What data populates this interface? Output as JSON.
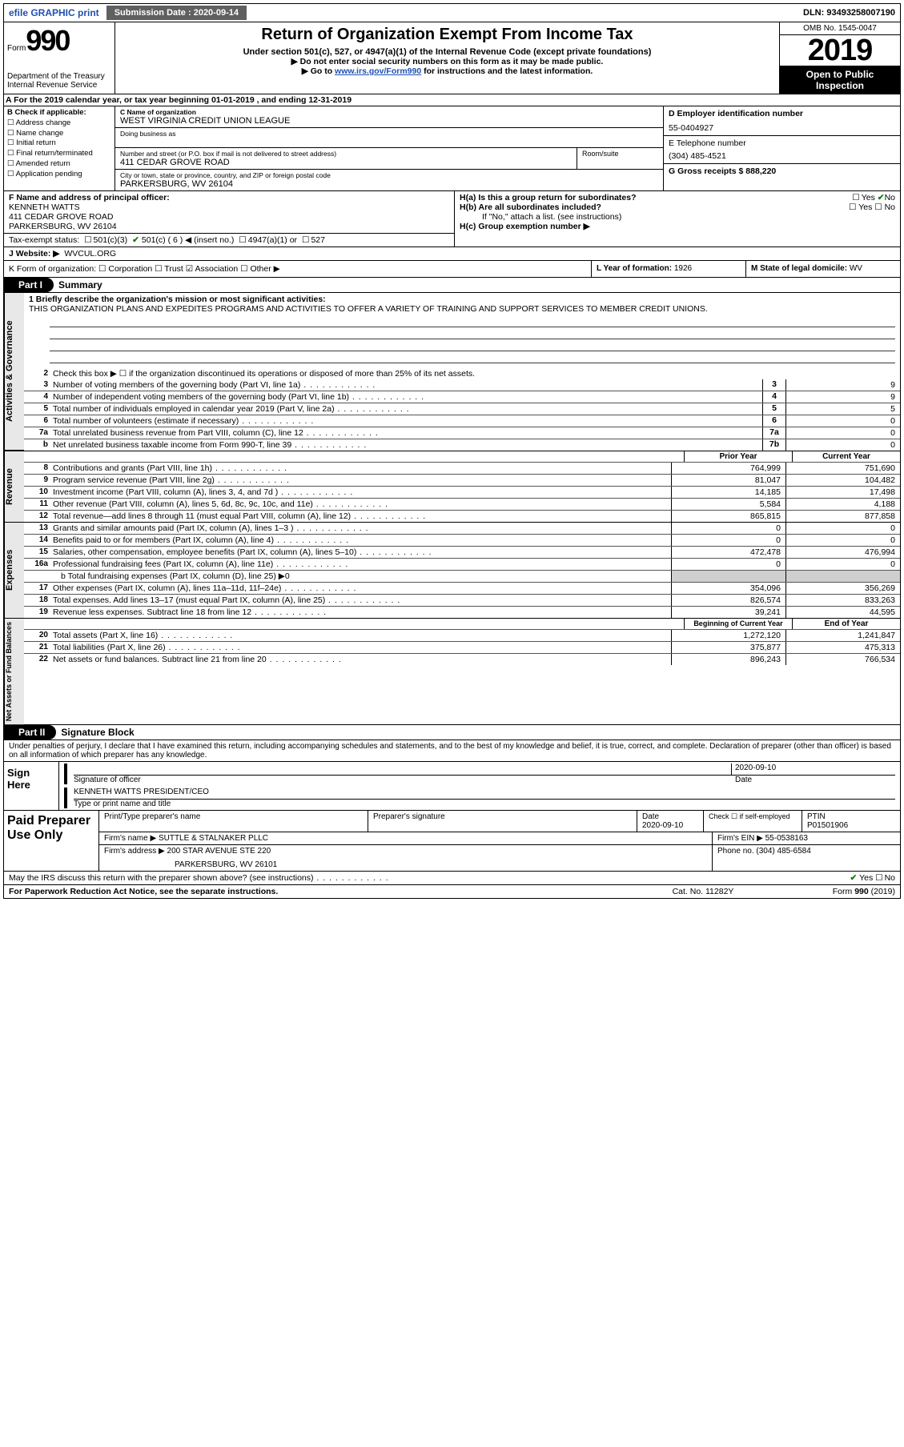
{
  "topbar": {
    "efile": "efile GRAPHIC print",
    "submission_label": "Submission Date : 2020-09-14",
    "dln": "DLN: 93493258007190"
  },
  "header": {
    "form_word": "Form",
    "form_number": "990",
    "dept1": "Department of the Treasury",
    "dept2": "Internal Revenue Service",
    "title": "Return of Organization Exempt From Income Tax",
    "sub1": "Under section 501(c), 527, or 4947(a)(1) of the Internal Revenue Code (except private foundations)",
    "sub2": "▶ Do not enter social security numbers on this form as it may be made public.",
    "sub3a": "▶ Go to ",
    "sub3link": "www.irs.gov/Form990",
    "sub3b": " for instructions and the latest information.",
    "omb": "OMB No. 1545-0047",
    "year": "2019",
    "open1": "Open to Public",
    "open2": "Inspection"
  },
  "rowA": "A For the 2019 calendar year, or tax year beginning 01-01-2019    , and ending 12-31-2019",
  "boxB": {
    "label": "B Check if applicable:",
    "items": [
      "Address change",
      "Name change",
      "Initial return",
      "Final return/terminated",
      "Amended return",
      "Application pending"
    ]
  },
  "boxC": {
    "name_lbl": "C Name of organization",
    "name_val": "WEST VIRGINIA CREDIT UNION LEAGUE",
    "dba_lbl": "Doing business as",
    "addr_lbl": "Number and street (or P.O. box if mail is not delivered to street address)",
    "addr_val": "411 CEDAR GROVE ROAD",
    "room_lbl": "Room/suite",
    "city_lbl": "City or town, state or province, country, and ZIP or foreign postal code",
    "city_val": "PARKERSBURG, WV  26104"
  },
  "boxD": {
    "lbl": "D Employer identification number",
    "val": "55-0404927"
  },
  "boxE": {
    "lbl": "E Telephone number",
    "val": "(304) 485-4521"
  },
  "boxG": {
    "lbl": "G Gross receipts $ 888,220"
  },
  "boxF": {
    "lbl": "F  Name and address of principal officer:",
    "l1": "KENNETH WATTS",
    "l2": "411 CEDAR GROVE ROAD",
    "l3": "PARKERSBURG, WV  26104"
  },
  "boxH": {
    "ha": "H(a)  Is this a group return for subordinates?",
    "ha_yes": "Yes",
    "ha_no": "No",
    "hb": "H(b)  Are all subordinates included?",
    "hb_yesno": "Yes    ☐ No",
    "hnote": "If \"No,\" attach a list. (see instructions)",
    "hc": "H(c)  Group exemption number ▶"
  },
  "taxstatus": {
    "lbl": "Tax-exempt status:",
    "opt1": "501(c)(3)",
    "opt2": "501(c) ( 6 ) ◀ (insert no.)",
    "opt3": "4947(a)(1) or",
    "opt4": "527"
  },
  "rowJ": {
    "lbl": "J   Website: ▶",
    "val": "WVCUL.ORG"
  },
  "rowK": {
    "left": "K Form of organization:   ☐ Corporation  ☐ Trust  ☑ Association  ☐ Other ▶",
    "mid_lbl": "L Year of formation: ",
    "mid_val": "1926",
    "right_lbl": "M State of legal domicile: ",
    "right_val": "WV"
  },
  "parts": {
    "p1": "Part I",
    "p1t": "Summary",
    "p2": "Part II",
    "p2t": "Signature Block"
  },
  "p1": {
    "l1a": "1  Briefly describe the organization's mission or most significant activities:",
    "l1b": "THIS ORGANIZATION PLANS AND EXPEDITES PROGRAMS AND ACTIVITIES TO OFFER A VARIETY OF TRAINING AND SUPPORT SERVICES TO MEMBER CREDIT UNIONS.",
    "l2": "Check this box ▶ ☐  if the organization discontinued its operations or disposed of more than 25% of its net assets.",
    "rows_ag": [
      {
        "n": "3",
        "t": "Number of voting members of the governing body (Part VI, line 1a)",
        "b": "3",
        "v": "9"
      },
      {
        "n": "4",
        "t": "Number of independent voting members of the governing body (Part VI, line 1b)",
        "b": "4",
        "v": "9"
      },
      {
        "n": "5",
        "t": "Total number of individuals employed in calendar year 2019 (Part V, line 2a)",
        "b": "5",
        "v": "5"
      },
      {
        "n": "6",
        "t": "Total number of volunteers (estimate if necessary)",
        "b": "6",
        "v": "0"
      },
      {
        "n": "7a",
        "t": "Total unrelated business revenue from Part VIII, column (C), line 12",
        "b": "7a",
        "v": "0"
      },
      {
        "n": "b",
        "t": "Net unrelated business taxable income from Form 990-T, line 39",
        "b": "7b",
        "v": "0"
      }
    ],
    "hdr_prior": "Prior Year",
    "hdr_cur": "Current Year",
    "revenue": [
      {
        "n": "8",
        "t": "Contributions and grants (Part VIII, line 1h)",
        "p": "764,999",
        "c": "751,690"
      },
      {
        "n": "9",
        "t": "Program service revenue (Part VIII, line 2g)",
        "p": "81,047",
        "c": "104,482"
      },
      {
        "n": "10",
        "t": "Investment income (Part VIII, column (A), lines 3, 4, and 7d )",
        "p": "14,185",
        "c": "17,498"
      },
      {
        "n": "11",
        "t": "Other revenue (Part VIII, column (A), lines 5, 6d, 8c, 9c, 10c, and 11e)",
        "p": "5,584",
        "c": "4,188"
      },
      {
        "n": "12",
        "t": "Total revenue—add lines 8 through 11 (must equal Part VIII, column (A), line 12)",
        "p": "865,815",
        "c": "877,858"
      }
    ],
    "expenses": [
      {
        "n": "13",
        "t": "Grants and similar amounts paid (Part IX, column (A), lines 1–3 )",
        "p": "0",
        "c": "0"
      },
      {
        "n": "14",
        "t": "Benefits paid to or for members (Part IX, column (A), line 4)",
        "p": "0",
        "c": "0"
      },
      {
        "n": "15",
        "t": "Salaries, other compensation, employee benefits (Part IX, column (A), lines 5–10)",
        "p": "472,478",
        "c": "476,994"
      },
      {
        "n": "16a",
        "t": "Professional fundraising fees (Part IX, column (A), line 11e)",
        "p": "0",
        "c": "0"
      }
    ],
    "exp_b": "b  Total fundraising expenses (Part IX, column (D), line 25) ▶0",
    "expenses2": [
      {
        "n": "17",
        "t": "Other expenses (Part IX, column (A), lines 11a–11d, 11f–24e)",
        "p": "354,096",
        "c": "356,269"
      },
      {
        "n": "18",
        "t": "Total expenses. Add lines 13–17 (must equal Part IX, column (A), line 25)",
        "p": "826,574",
        "c": "833,263"
      },
      {
        "n": "19",
        "t": "Revenue less expenses. Subtract line 18 from line 12",
        "p": "39,241",
        "c": "44,595"
      }
    ],
    "na_hdr_prior": "Beginning of Current Year",
    "na_hdr_cur": "End of Year",
    "netassets": [
      {
        "n": "20",
        "t": "Total assets (Part X, line 16)",
        "p": "1,272,120",
        "c": "1,241,847"
      },
      {
        "n": "21",
        "t": "Total liabilities (Part X, line 26)",
        "p": "375,877",
        "c": "475,313"
      },
      {
        "n": "22",
        "t": "Net assets or fund balances. Subtract line 21 from line 20",
        "p": "896,243",
        "c": "766,534"
      }
    ],
    "side_ag": "Activities & Governance",
    "side_rev": "Revenue",
    "side_exp": "Expenses",
    "side_na": "Net Assets or Fund Balances"
  },
  "p2": {
    "penalty": "Under penalties of perjury, I declare that I have examined this return, including accompanying schedules and statements, and to the best of my knowledge and belief, it is true, correct, and complete. Declaration of preparer (other than officer) is based on all information of which preparer has any knowledge.",
    "sign_here": "Sign Here",
    "sig_lbl": "Signature of officer",
    "date_lbl": "Date",
    "date_val": "2020-09-10",
    "name_val": "KENNETH WATTS  PRESIDENT/CEO",
    "name_lbl": "Type or print name and title",
    "paid": "Paid Preparer Use Only",
    "p_name_lbl": "Print/Type preparer's name",
    "p_sig_lbl": "Preparer's signature",
    "p_date_lbl": "Date",
    "p_date_val": "2020-09-10",
    "p_self": "Check ☐ if self-employed",
    "ptin_lbl": "PTIN",
    "ptin_val": "P01501906",
    "firm_lbl": "Firm's name    ▶",
    "firm_val": "SUTTLE & STALNAKER PLLC",
    "ein_lbl": "Firm's EIN ▶",
    "ein_val": "55-0538163",
    "faddr_lbl": "Firm's address ▶",
    "faddr_val1": "200 STAR AVENUE STE 220",
    "faddr_val2": "PARKERSBURG, WV  26101",
    "phone_lbl": "Phone no.",
    "phone_val": "(304) 485-6584",
    "discuss": "May the IRS discuss this return with the preparer shown above? (see instructions)",
    "yes": "Yes",
    "no": "No"
  },
  "footer": {
    "pra": "For Paperwork Reduction Act Notice, see the separate instructions.",
    "cat": "Cat. No. 11282Y",
    "form": "Form 990 (2019)"
  }
}
